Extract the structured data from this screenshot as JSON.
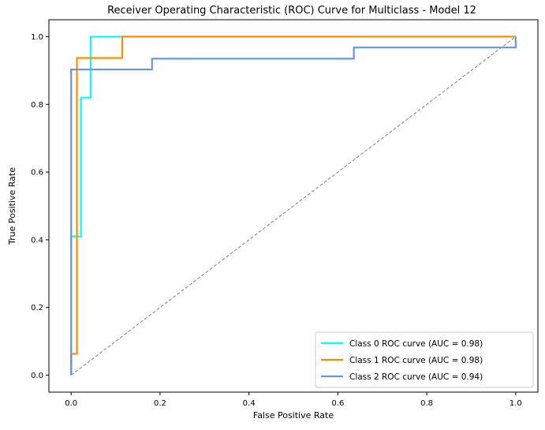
{
  "chart_data": {
    "type": "line",
    "title": "Receiver Operating Characteristic (ROC) Curve for Multiclass - Model 12",
    "xlabel": "False Positive Rate",
    "ylabel": "True Positive Rate",
    "xlim": [
      -0.05,
      1.05
    ],
    "ylim": [
      -0.05,
      1.05
    ],
    "xticks": [
      0.0,
      0.2,
      0.4,
      0.6,
      0.8,
      1.0
    ],
    "yticks": [
      0.0,
      0.2,
      0.4,
      0.6,
      0.8,
      1.0
    ],
    "tick_labels_x": [
      "0.0",
      "0.2",
      "0.4",
      "0.6",
      "0.8",
      "1.0"
    ],
    "tick_labels_y": [
      "0.0",
      "0.2",
      "0.4",
      "0.6",
      "0.8",
      "1.0"
    ],
    "grid": false,
    "legend_position": "bottom-right",
    "series": [
      {
        "name": "Class 0 ROC curve (AUC = 0.98)",
        "color": "#00ffff",
        "x": [
          0.0,
          0.0,
          0.0,
          0.022,
          0.022,
          0.044,
          0.044,
          1.0
        ],
        "y": [
          0.0,
          0.41,
          0.41,
          0.41,
          0.82,
          0.82,
          1.0,
          1.0
        ]
      },
      {
        "name": "Class 1 ROC curve (AUC = 0.98)",
        "color": "#ff8c00",
        "x": [
          0.0,
          0.0,
          0.013,
          0.013,
          0.115,
          0.115,
          1.0
        ],
        "y": [
          0.0,
          0.063,
          0.063,
          0.937,
          0.937,
          1.0,
          1.0
        ]
      },
      {
        "name": "Class 2 ROC curve (AUC = 0.94)",
        "color": "#6495ed",
        "x": [
          0.0,
          0.0,
          0.182,
          0.182,
          0.636,
          0.636,
          1.0,
          1.0
        ],
        "y": [
          0.0,
          0.903,
          0.903,
          0.935,
          0.935,
          0.968,
          0.968,
          1.0
        ]
      }
    ],
    "reference_line": {
      "x": [
        0,
        1
      ],
      "y": [
        0,
        1
      ],
      "color": "#808080"
    }
  }
}
